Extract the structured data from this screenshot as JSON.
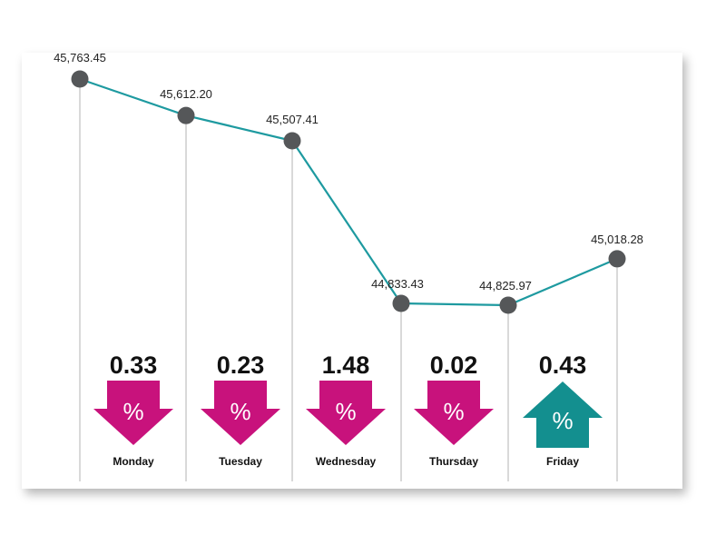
{
  "chart_data": {
    "type": "line",
    "categories": [
      "",
      "Monday",
      "Tuesday",
      "Wednesday",
      "Thursday",
      "Friday"
    ],
    "values": [
      45763.45,
      45612.2,
      45507.41,
      44833.43,
      44825.97,
      45018.28
    ],
    "value_labels": [
      "45,763.45",
      "45,612.20",
      "45,507.41",
      "44,833.43",
      "44,825.97",
      "45,018.28"
    ],
    "ylim": [
      44700,
      45900
    ],
    "grid": false,
    "daily_changes": [
      {
        "day": "Monday",
        "percent": "0.33",
        "direction": "down"
      },
      {
        "day": "Tuesday",
        "percent": "0.23",
        "direction": "down"
      },
      {
        "day": "Wednesday",
        "percent": "1.48",
        "direction": "down"
      },
      {
        "day": "Thursday",
        "percent": "0.02",
        "direction": "down"
      },
      {
        "day": "Friday",
        "percent": "0.43",
        "direction": "up"
      }
    ],
    "percent_symbol": "%"
  },
  "colors": {
    "line": "#1e9aa0",
    "marker": "#555759",
    "down_arrow": "#c8127c",
    "up_arrow": "#138f8f",
    "drop_line": "#b3b3b3"
  }
}
